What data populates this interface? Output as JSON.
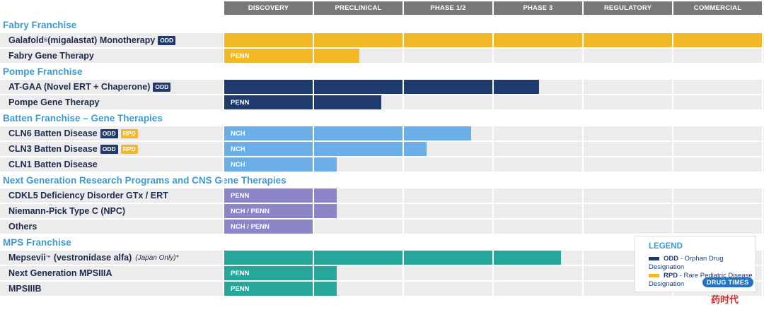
{
  "chart_data": {
    "type": "bar",
    "orientation": "horizontal-gantt",
    "phases": [
      "DISCOVERY",
      "PRECLINICAL",
      "PHASE 1/2",
      "PHASE 3",
      "REGULATORY",
      "COMMERCIAL"
    ],
    "groups": [
      {
        "name": "Fabry Franchise",
        "programs": [
          {
            "name": "Galafold",
            "sup": "®",
            "name_rest": "(migalastat) Monotherapy",
            "badges": [
              "ODD"
            ],
            "color": "#f2b826",
            "progress": 6.0,
            "bar_label": ""
          },
          {
            "name": "Fabry Gene Therapy",
            "badges": [],
            "color": "#f2b826",
            "progress": 1.5,
            "bar_label": "PENN"
          }
        ]
      },
      {
        "name": "Pompe Franchise",
        "programs": [
          {
            "name": "AT-GAA (Novel ERT + Chaperone)",
            "badges": [
              "ODD"
            ],
            "color": "#1f3b6e",
            "progress": 3.5,
            "bar_label": ""
          },
          {
            "name": "Pompe Gene Therapy",
            "badges": [],
            "color": "#1f3b6e",
            "progress": 1.75,
            "bar_label": "PENN"
          }
        ]
      },
      {
        "name": "Batten Franchise – Gene Therapies",
        "programs": [
          {
            "name": "CLN6 Batten Disease",
            "badges": [
              "ODD",
              "RPD"
            ],
            "color": "#6aaee5",
            "progress": 2.75,
            "bar_label": "NCH"
          },
          {
            "name": "CLN3 Batten Disease",
            "badges": [
              "ODD",
              "RPD"
            ],
            "color": "#6aaee5",
            "progress": 2.25,
            "bar_label": "NCH"
          },
          {
            "name": "CLN1 Batten Disease",
            "badges": [],
            "color": "#6aaee5",
            "progress": 1.25,
            "bar_label": "NCH"
          }
        ]
      },
      {
        "name": "Next Generation Research Programs and CNS Gene Therapies",
        "programs": [
          {
            "name": "CDKL5 Deficiency Disorder GTx / ERT",
            "badges": [],
            "color": "#8a86c8",
            "progress": 1.25,
            "bar_label": "PENN"
          },
          {
            "name": "Niemann-Pick Type C (NPC)",
            "badges": [],
            "color": "#8a86c8",
            "progress": 1.25,
            "bar_label": "NCH / PENN"
          },
          {
            "name": "Others",
            "badges": [],
            "color": "#8a86c8",
            "progress": 1.0,
            "bar_label": "NCH / PENN"
          }
        ]
      },
      {
        "name": "MPS Franchise",
        "programs": [
          {
            "name": "Mepsevii",
            "sup": "™",
            "name_rest": "(vestronidase alfa)",
            "note": "(Japan Only)*",
            "badges": [],
            "color": "#26a79a",
            "progress": 3.75,
            "bar_label": ""
          },
          {
            "name": "Next Generation MPSIIIA",
            "badges": [],
            "color": "#26a79a",
            "progress": 1.25,
            "bar_label": "PENN"
          },
          {
            "name": "MPSIIIB",
            "badges": [],
            "color": "#26a79a",
            "progress": 1.25,
            "bar_label": "PENN"
          }
        ]
      }
    ],
    "legend": {
      "title": "LEGEND",
      "items": [
        {
          "code": "ODD",
          "text": "- Orphan Drug Designation",
          "color": "#1f3b6e"
        },
        {
          "code": "RPD",
          "text": "- Rare Pediatric Disease Designation",
          "color": "#f2b826"
        }
      ]
    }
  },
  "watermark": {
    "text1": "DRUG TIMES",
    "text2": "药时代"
  }
}
